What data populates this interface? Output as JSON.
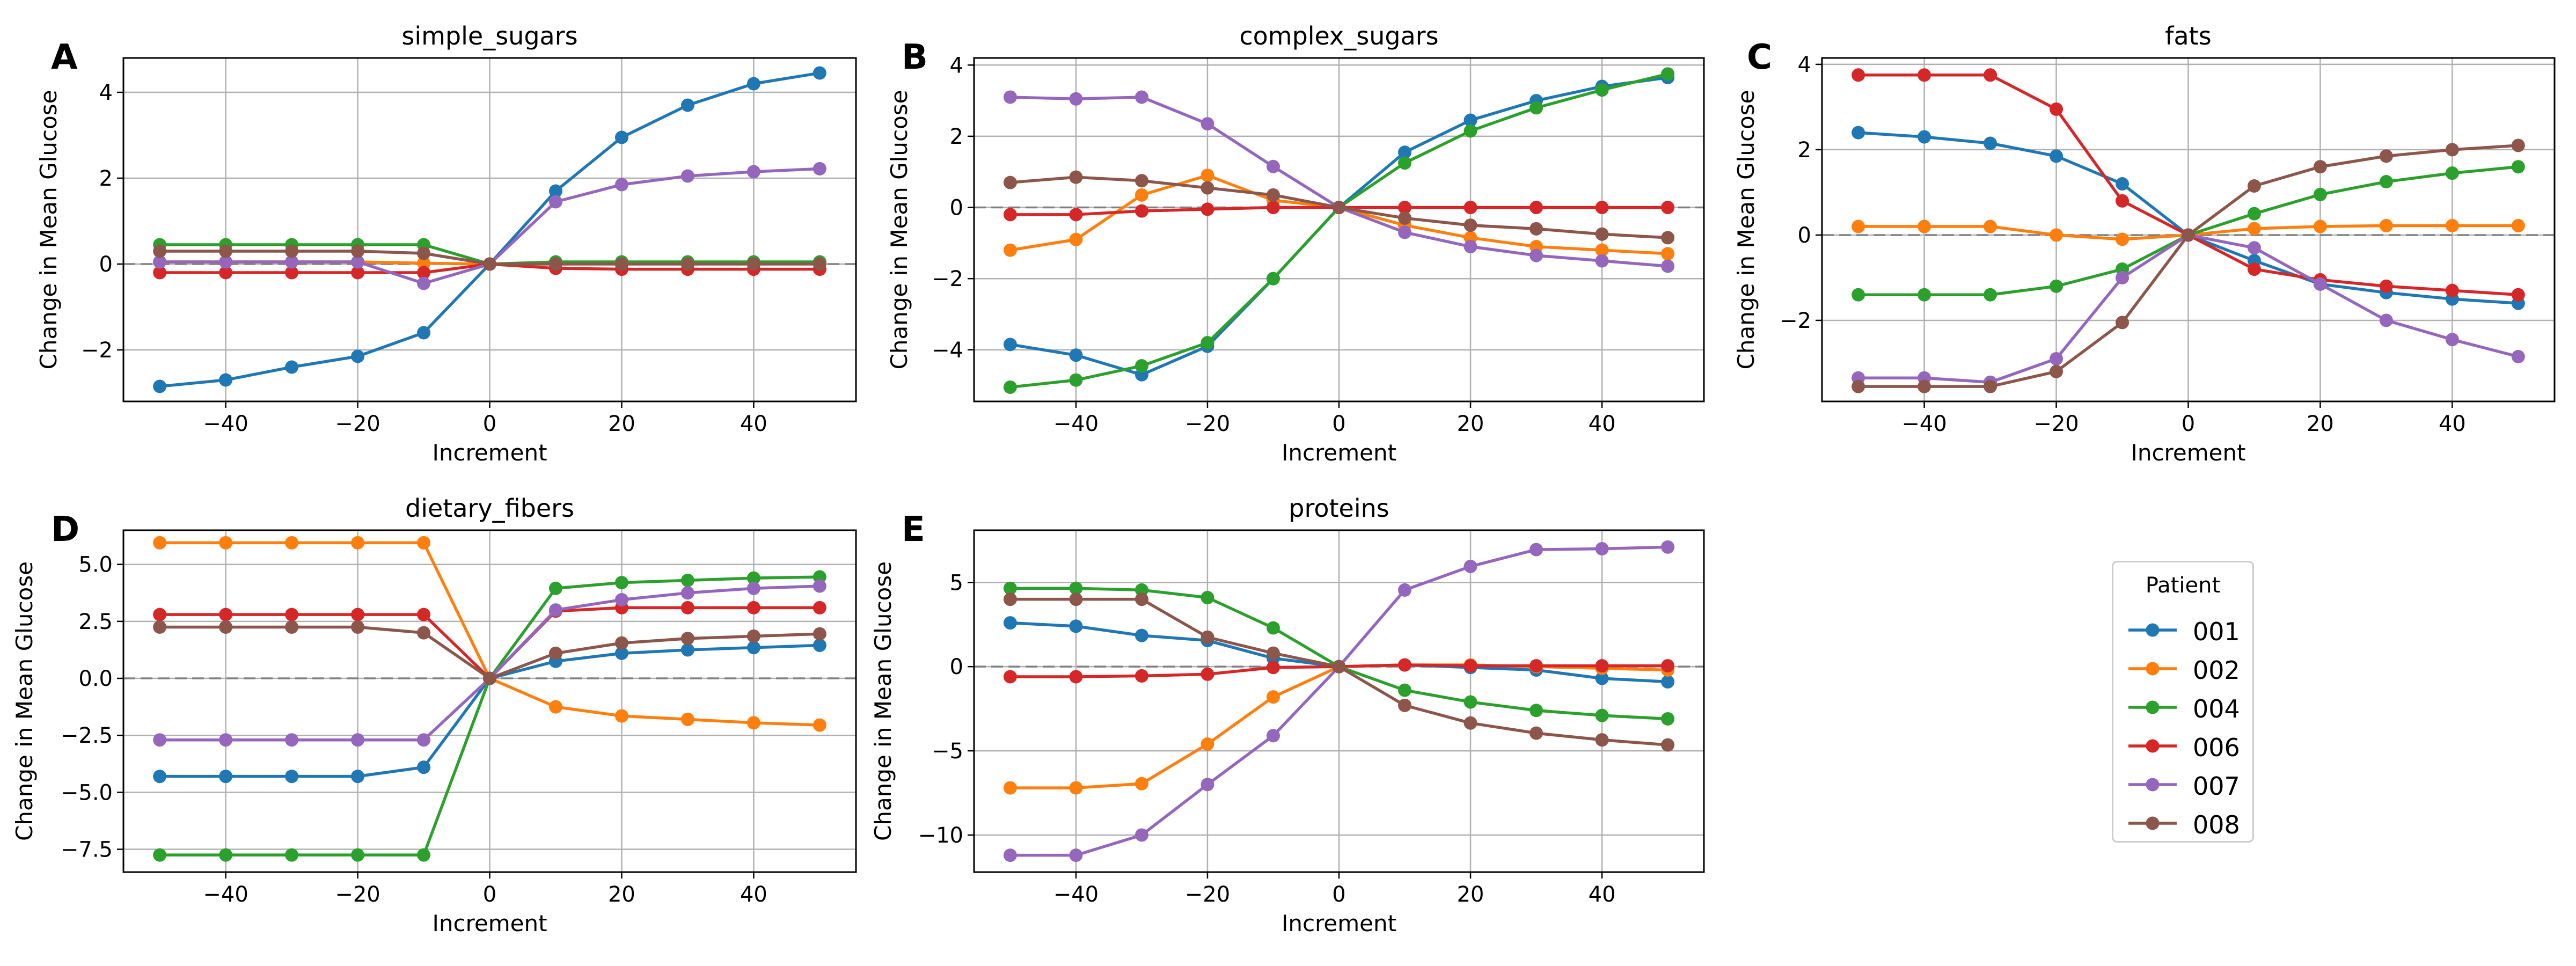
{
  "figure": {
    "x_label": "Increment",
    "y_label": "Change in Mean Glucose",
    "legend_title": "Patient"
  },
  "series_styles": [
    {
      "name": "001",
      "color": "#1f77b4"
    },
    {
      "name": "002",
      "color": "#ff7f0e"
    },
    {
      "name": "004",
      "color": "#2ca02c"
    },
    {
      "name": "006",
      "color": "#d62728"
    },
    {
      "name": "007",
      "color": "#9467bd"
    },
    {
      "name": "008",
      "color": "#8c564b"
    }
  ],
  "chart_data": [
    {
      "panel_label": "A",
      "type": "line",
      "title": "simple_sugars",
      "xlabel": "Increment",
      "ylabel": "Change in Mean Glucose",
      "x": [
        -50,
        -40,
        -30,
        -20,
        -10,
        0,
        10,
        20,
        30,
        40,
        50
      ],
      "xlim": [
        -55.5,
        55.5
      ],
      "ylim": [
        -3.2,
        4.8
      ],
      "xticks": [
        -40,
        -20,
        0,
        20,
        40
      ],
      "xtick_labels": [
        "−40",
        "−20",
        "0",
        "20",
        "40"
      ],
      "yticks": [
        -2,
        0,
        2,
        4
      ],
      "ytick_labels": [
        "−2",
        "0",
        "2",
        "4"
      ],
      "grid": true,
      "zero_line": true,
      "series": [
        {
          "name": "001",
          "values": [
            -2.85,
            -2.7,
            -2.4,
            -2.15,
            -1.6,
            0,
            1.7,
            2.95,
            3.7,
            4.2,
            4.45
          ]
        },
        {
          "name": "002",
          "values": [
            0.05,
            0.05,
            0.05,
            0.05,
            0.02,
            0,
            0.02,
            0.02,
            0.02,
            0.02,
            0.02
          ]
        },
        {
          "name": "004",
          "values": [
            0.45,
            0.45,
            0.45,
            0.45,
            0.45,
            0,
            0.05,
            0.05,
            0.05,
            0.05,
            0.05
          ]
        },
        {
          "name": "006",
          "values": [
            -0.2,
            -0.2,
            -0.2,
            -0.2,
            -0.2,
            0,
            -0.1,
            -0.12,
            -0.12,
            -0.12,
            -0.12
          ]
        },
        {
          "name": "007",
          "values": [
            0.05,
            0.05,
            0.05,
            0.05,
            -0.45,
            0,
            1.45,
            1.85,
            2.05,
            2.15,
            2.22
          ]
        },
        {
          "name": "008",
          "values": [
            0.3,
            0.3,
            0.3,
            0.3,
            0.25,
            0,
            0.0,
            0.0,
            0.0,
            0.0,
            0.0
          ]
        }
      ]
    },
    {
      "panel_label": "B",
      "type": "line",
      "title": "complex_sugars",
      "xlabel": "Increment",
      "ylabel": "Change in Mean Glucose",
      "x": [
        -50,
        -40,
        -30,
        -20,
        -10,
        0,
        10,
        20,
        30,
        40,
        50
      ],
      "xlim": [
        -55.5,
        55.5
      ],
      "ylim": [
        -5.45,
        4.2
      ],
      "xticks": [
        -40,
        -20,
        0,
        20,
        40
      ],
      "xtick_labels": [
        "−40",
        "−20",
        "0",
        "20",
        "40"
      ],
      "yticks": [
        -4,
        -2,
        0,
        2,
        4
      ],
      "ytick_labels": [
        "−4",
        "−2",
        "0",
        "2",
        "4"
      ],
      "grid": true,
      "zero_line": true,
      "series": [
        {
          "name": "001",
          "values": [
            -3.85,
            -4.15,
            -4.7,
            -3.9,
            -2.0,
            0,
            1.55,
            2.45,
            3.0,
            3.4,
            3.65
          ]
        },
        {
          "name": "002",
          "values": [
            -1.2,
            -0.9,
            0.35,
            0.9,
            0.2,
            0,
            -0.5,
            -0.85,
            -1.1,
            -1.2,
            -1.3
          ]
        },
        {
          "name": "004",
          "values": [
            -5.05,
            -4.85,
            -4.45,
            -3.8,
            -2.0,
            0,
            1.25,
            2.15,
            2.8,
            3.3,
            3.75
          ]
        },
        {
          "name": "006",
          "values": [
            -0.2,
            -0.2,
            -0.1,
            -0.05,
            0.0,
            0,
            0.0,
            0.0,
            0.0,
            0.0,
            0.0
          ]
        },
        {
          "name": "007",
          "values": [
            3.1,
            3.05,
            3.1,
            2.35,
            1.15,
            0,
            -0.7,
            -1.1,
            -1.35,
            -1.5,
            -1.65
          ]
        },
        {
          "name": "008",
          "values": [
            0.7,
            0.85,
            0.75,
            0.55,
            0.35,
            0,
            -0.3,
            -0.5,
            -0.6,
            -0.75,
            -0.85
          ]
        }
      ]
    },
    {
      "panel_label": "C",
      "type": "line",
      "title": "fats",
      "xlabel": "Increment",
      "ylabel": "Change in Mean Glucose",
      "x": [
        -50,
        -40,
        -30,
        -20,
        -10,
        0,
        10,
        20,
        30,
        40,
        50
      ],
      "xlim": [
        -55.5,
        55.5
      ],
      "ylim": [
        -3.9,
        4.15
      ],
      "xticks": [
        -40,
        -20,
        0,
        20,
        40
      ],
      "xtick_labels": [
        "−40",
        "−20",
        "0",
        "20",
        "40"
      ],
      "yticks": [
        -2,
        0,
        2,
        4
      ],
      "ytick_labels": [
        "−2",
        "0",
        "2",
        "4"
      ],
      "grid": true,
      "zero_line": true,
      "series": [
        {
          "name": "001",
          "values": [
            2.4,
            2.3,
            2.15,
            1.85,
            1.2,
            0,
            -0.6,
            -1.15,
            -1.35,
            -1.5,
            -1.6
          ]
        },
        {
          "name": "002",
          "values": [
            0.2,
            0.2,
            0.2,
            0.0,
            -0.1,
            0,
            0.15,
            0.2,
            0.22,
            0.22,
            0.22
          ]
        },
        {
          "name": "004",
          "values": [
            -1.4,
            -1.4,
            -1.4,
            -1.2,
            -0.8,
            0,
            0.5,
            0.95,
            1.25,
            1.45,
            1.6
          ]
        },
        {
          "name": "006",
          "values": [
            3.75,
            3.75,
            3.75,
            2.95,
            0.8,
            0,
            -0.8,
            -1.05,
            -1.2,
            -1.3,
            -1.4
          ]
        },
        {
          "name": "007",
          "values": [
            -3.35,
            -3.35,
            -3.45,
            -2.9,
            -1.0,
            0,
            -0.3,
            -1.15,
            -2.0,
            -2.45,
            -2.85
          ]
        },
        {
          "name": "008",
          "values": [
            -3.55,
            -3.55,
            -3.55,
            -3.2,
            -2.05,
            0,
            1.15,
            1.6,
            1.85,
            2.0,
            2.1
          ]
        }
      ]
    },
    {
      "panel_label": "D",
      "type": "line",
      "title": "dietary_fibers",
      "xlabel": "Increment",
      "ylabel": "Change in Mean Glucose",
      "x": [
        -50,
        -40,
        -30,
        -20,
        -10,
        0,
        10,
        20,
        30,
        40,
        50
      ],
      "xlim": [
        -55.5,
        55.5
      ],
      "ylim": [
        -8.5,
        6.5
      ],
      "xticks": [
        -40,
        -20,
        0,
        20,
        40
      ],
      "xtick_labels": [
        "−40",
        "−20",
        "0",
        "20",
        "40"
      ],
      "yticks": [
        -7.5,
        -5.0,
        -2.5,
        0.0,
        2.5,
        5.0
      ],
      "ytick_labels": [
        "−7.5",
        "−5.0",
        "−2.5",
        "0.0",
        "2.5",
        "5.0"
      ],
      "grid": true,
      "zero_line": true,
      "series": [
        {
          "name": "001",
          "values": [
            -4.3,
            -4.3,
            -4.3,
            -4.3,
            -3.9,
            0,
            0.75,
            1.1,
            1.25,
            1.35,
            1.45
          ]
        },
        {
          "name": "002",
          "values": [
            5.95,
            5.95,
            5.95,
            5.95,
            5.95,
            0,
            -1.25,
            -1.65,
            -1.8,
            -1.95,
            -2.05
          ]
        },
        {
          "name": "004",
          "values": [
            -7.75,
            -7.75,
            -7.75,
            -7.75,
            -7.75,
            0,
            3.95,
            4.2,
            4.3,
            4.4,
            4.45
          ]
        },
        {
          "name": "006",
          "values": [
            2.8,
            2.8,
            2.8,
            2.8,
            2.8,
            0,
            2.95,
            3.1,
            3.1,
            3.1,
            3.1
          ]
        },
        {
          "name": "007",
          "values": [
            -2.7,
            -2.7,
            -2.7,
            -2.7,
            -2.7,
            0,
            3.0,
            3.45,
            3.75,
            3.95,
            4.05
          ]
        },
        {
          "name": "008",
          "values": [
            2.25,
            2.25,
            2.25,
            2.25,
            2.0,
            0,
            1.1,
            1.55,
            1.75,
            1.85,
            1.95
          ]
        }
      ]
    },
    {
      "panel_label": "E",
      "type": "line",
      "title": "proteins",
      "xlabel": "Increment",
      "ylabel": "Change in Mean Glucose",
      "x": [
        -50,
        -40,
        -30,
        -20,
        -10,
        0,
        10,
        20,
        30,
        40,
        50
      ],
      "xlim": [
        -55.5,
        55.5
      ],
      "ylim": [
        -12.2,
        8.1
      ],
      "xticks": [
        -40,
        -20,
        0,
        20,
        40
      ],
      "xtick_labels": [
        "−40",
        "−20",
        "0",
        "20",
        "40"
      ],
      "yticks": [
        -10,
        -5,
        0,
        5
      ],
      "ytick_labels": [
        "−10",
        "−5",
        "0",
        "5"
      ],
      "grid": true,
      "zero_line": true,
      "series": [
        {
          "name": "001",
          "values": [
            2.6,
            2.4,
            1.85,
            1.55,
            0.5,
            0,
            0.1,
            -0.05,
            -0.2,
            -0.7,
            -0.9
          ]
        },
        {
          "name": "002",
          "values": [
            -7.2,
            -7.2,
            -6.95,
            -4.6,
            -1.8,
            0,
            0.1,
            0.1,
            0.0,
            -0.1,
            -0.2
          ]
        },
        {
          "name": "004",
          "values": [
            4.65,
            4.65,
            4.55,
            4.1,
            2.3,
            0,
            -1.4,
            -2.1,
            -2.6,
            -2.9,
            -3.1
          ]
        },
        {
          "name": "006",
          "values": [
            -0.6,
            -0.6,
            -0.55,
            -0.45,
            -0.05,
            0,
            0.1,
            0.05,
            0.05,
            0.05,
            0.05
          ]
        },
        {
          "name": "007",
          "values": [
            -11.2,
            -11.2,
            -10.0,
            -7.0,
            -4.1,
            0,
            4.55,
            5.95,
            6.95,
            7.0,
            7.1
          ]
        },
        {
          "name": "008",
          "values": [
            4.0,
            4.0,
            4.0,
            1.75,
            0.8,
            0,
            -2.3,
            -3.35,
            -3.95,
            -4.35,
            -4.65
          ]
        }
      ]
    }
  ]
}
